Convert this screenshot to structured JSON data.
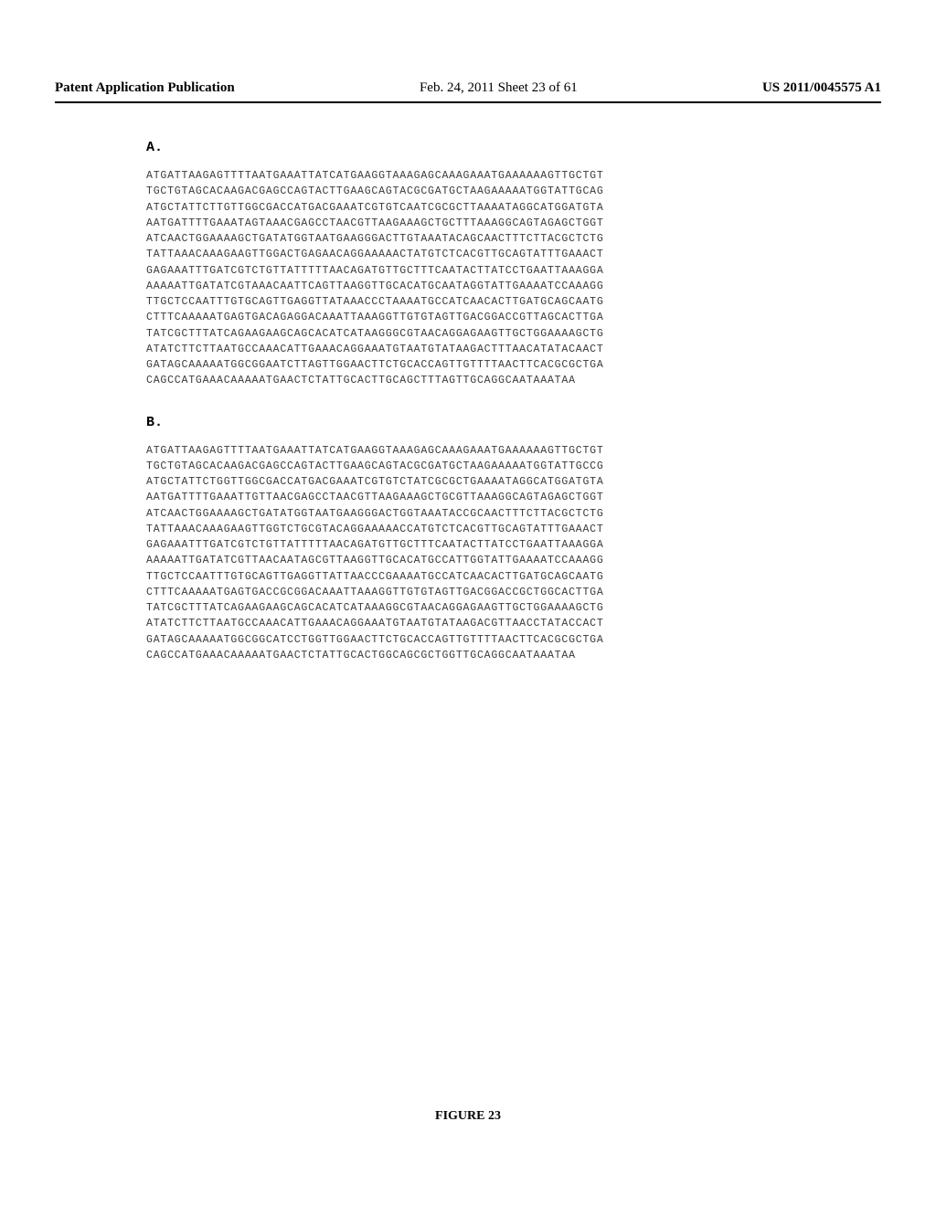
{
  "header": {
    "left": "Patent Application Publication",
    "center": "Feb. 24, 2011  Sheet 23 of 61",
    "right": "US 2011/0045575 A1"
  },
  "sectionA": {
    "label": "A.",
    "lines": [
      "ATGATTAAGAGTTTTAATGAAATTATCATGAAGGTAAAGAGCAAAGAAATGAAAAAAGTTGCTGT",
      "TGCTGTAGCACAAGACGAGCCAGTACTTGAAGCAGTACGCGATGCTAAGAAAAATGGTATTGCAG",
      "ATGCTATTCTTGTTGGCGACCATGACGAAATCGTGTCAATCGCGCTTAAAATAGGCATGGATGTA",
      "AATGATTTTGAAATAGTAAACGAGCCTAACGTTAAGAAAGCTGCTTTAAAGGCAGTAGAGCTGGT",
      "ATCAACTGGAAAAGCTGATATGGTAATGAAGGGACTTGTAAATACAGCAACTTTCTTACGCTCTG",
      "TATTAAACAAAGAAGTTGGACTGAGAACAGGAAAAACTATGTCTCACGTTGCAGTATTTGAAACT",
      "GAGAAATTTGATCGTCTGTTATTTTTAACAGATGTTGCTTTCAATACTTATCCTGAATTAAAGGA",
      "AAAAATTGATATCGTAAACAATTCAGTTAAGGTTGCACATGCAATAGGTATTGAAAATCCAAAGG",
      "TTGCTCCAATTTGTGCAGTTGAGGTTATAAACCCTAAAATGCCATCAACACTTGATGCAGCAATG",
      "CTTTCAAAAATGAGTGACAGAGGACAAATTAAAGGTTGTGTAGTTGACGGACCGTTAGCACTTGA",
      "TATCGCTTTATCAGAAGAAGCAGCACATCATAAGGGCGTAACAGGAGAAGTTGCTGGAAAAGCTG",
      "ATATCTTCTTAATGCCAAACATTGAAACAGGAAATGTAATGTATAAGACTTTAACATATACAACT",
      "GATAGCAAAAATGGCGGAATCTTAGTTGGAACTTCTGCACCAGTTGTTTTAACTTCACGCGCTGA",
      "CAGCCATGAAACAAAAATGAACTCTATTGCACTTGCAGCTTTAGTTGCAGGCAATAAATAA"
    ]
  },
  "sectionB": {
    "label": "B.",
    "lines": [
      "ATGATTAAGAGTTTTAATGAAATTATCATGAAGGTAAAGAGCAAAGAAATGAAAAAAGTTGCTGT",
      "TGCTGTAGCACAAGACGAGCCAGTACTTGAAGCAGTACGCGATGCTAAGAAAAATGGTATTGCCG",
      "ATGCTATTCTGGTTGGCGACCATGACGAAATCGTGTCTATCGCGCTGAAAATAGGCATGGATGTA",
      "AATGATTTTGAAATTGTTAACGAGCCTAACGTTAAGAAAGCTGCGTTAAAGGCAGTAGAGCTGGT",
      "ATCAACTGGAAAAGCTGATATGGTAATGAAGGGACTGGTAAATACCGCAACTTTCTTACGCTCTG",
      "TATTAAACAAAGAAGTTGGTCTGCGTACAGGAAAAACCATGTCTCACGTTGCAGTATTTGAAACT",
      "GAGAAATTTGATCGTCTGTTATTTTTAACAGATGTTGCTTTCAATACTTATCCTGAATTAAAGGA",
      "AAAAATTGATATCGTTAACAATAGCGTTAAGGTTGCACATGCCATTGGTATTGAAAATCCAAAGG",
      "TTGCTCCAATTTGTGCAGTTGAGGTTATTAACCCGAAAATGCCATCAACACTTGATGCAGCAATG",
      "CTTTCAAAAATGAGTGACCGCGGACAAATTAAAGGTTGTGTAGTTGACGGACCGCTGGCACTTGA",
      "TATCGCTTTATCAGAAGAAGCAGCACATCATAAAGGCGTAACAGGAGAAGTTGCTGGAAAAGCTG",
      "ATATCTTCTTAATGCCAAACATTGAAACAGGAAATGTAATGTATAAGACGTTAACCTATACCACT",
      "GATAGCAAAAATGGCGGCATCCTGGTTGGAACTTCTGCACCAGTTGTTTTAACTTCACGCGCTGA",
      "CAGCCATGAAACAAAAATGAACTCTATTGCACTGGCAGCGCTGGTTGCAGGCAATAAATAA"
    ]
  },
  "figureLabel": "FIGURE 23"
}
